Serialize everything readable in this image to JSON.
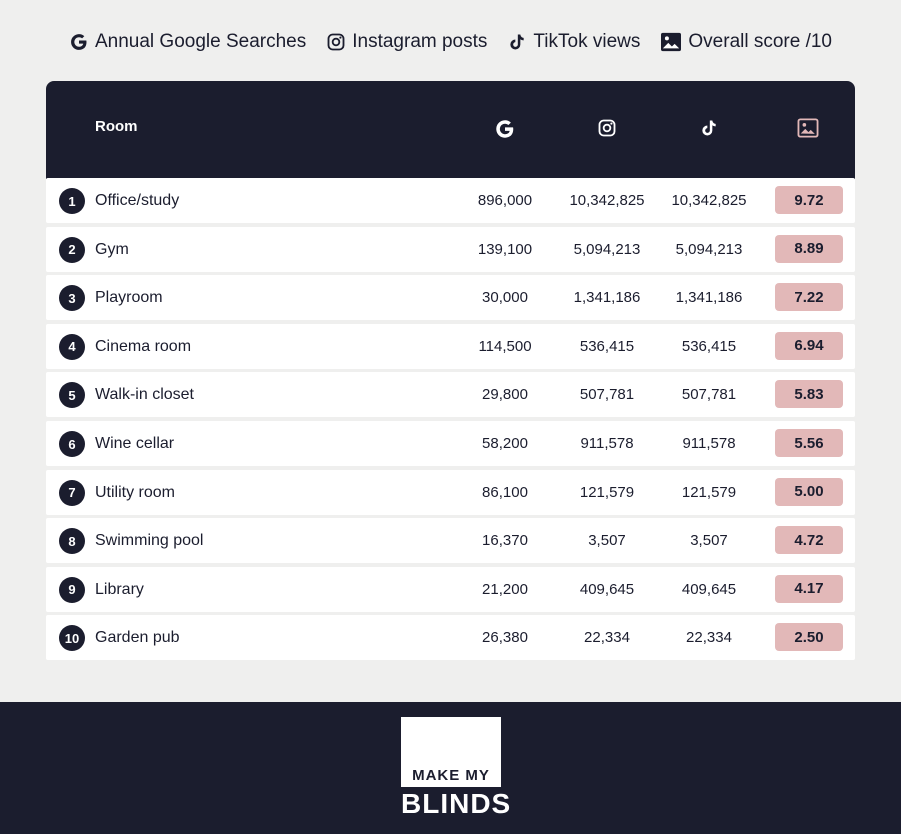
{
  "legend": {
    "google": "Annual Google Searches",
    "instagram": "Instagram posts",
    "tiktok": "TikTok views",
    "score": "Overall score /10"
  },
  "table": {
    "room_header": "Room"
  },
  "chart_data": {
    "type": "table",
    "columns": [
      "Room",
      "Annual Google Searches",
      "Instagram posts",
      "TikTok views",
      "Overall score /10"
    ],
    "rows": [
      {
        "rank": "1",
        "room": "Office/study",
        "google": "896,000",
        "instagram": "10,342,825",
        "tiktok": "10,342,825",
        "score": "9.72"
      },
      {
        "rank": "2",
        "room": "Gym",
        "google": "139,100",
        "instagram": "5,094,213",
        "tiktok": "5,094,213",
        "score": "8.89"
      },
      {
        "rank": "3",
        "room": "Playroom",
        "google": "30,000",
        "instagram": "1,341,186",
        "tiktok": "1,341,186",
        "score": "7.22"
      },
      {
        "rank": "4",
        "room": "Cinema room",
        "google": "114,500",
        "instagram": "536,415",
        "tiktok": "536,415",
        "score": "6.94"
      },
      {
        "rank": "5",
        "room": "Walk-in closet",
        "google": "29,800",
        "instagram": "507,781",
        "tiktok": "507,781",
        "score": "5.83"
      },
      {
        "rank": "6",
        "room": "Wine cellar",
        "google": "58,200",
        "instagram": "911,578",
        "tiktok": "911,578",
        "score": "5.56"
      },
      {
        "rank": "7",
        "room": "Utility room",
        "google": "86,100",
        "instagram": "121,579",
        "tiktok": "121,579",
        "score": "5.00"
      },
      {
        "rank": "8",
        "room": "Swimming pool",
        "google": "16,370",
        "instagram": "3,507",
        "tiktok": "3,507",
        "score": "4.72"
      },
      {
        "rank": "9",
        "room": "Library",
        "google": "21,200",
        "instagram": "409,645",
        "tiktok": "409,645",
        "score": "4.17"
      },
      {
        "rank": "10",
        "room": "Garden pub",
        "google": "26,380",
        "instagram": "22,334",
        "tiktok": "22,334",
        "score": "2.50"
      }
    ]
  },
  "icons": {
    "google": "google-icon",
    "instagram": "instagram-icon",
    "tiktok": "tiktok-icon",
    "score": "image-icon"
  },
  "colors": {
    "navy": "#1b1d2e",
    "score_fill": "#e2b8b8",
    "background": "#efefee"
  },
  "footer": {
    "logo_top": "MAKE MY",
    "logo_bottom": "BLINDS"
  }
}
